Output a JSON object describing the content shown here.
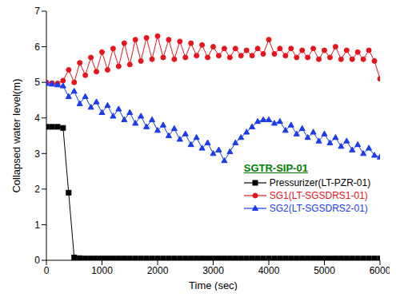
{
  "chart_data": {
    "type": "line",
    "annotations": [
      "SGTR-SIP-01"
    ],
    "x_label": "Time (sec)",
    "y_label": "Collapsed water level(m)",
    "xlim": [
      0,
      6000
    ],
    "xticks": [
      0,
      1000,
      2000,
      3000,
      4000,
      5000,
      6000
    ],
    "ylim": [
      0,
      7
    ],
    "yticks": [
      0,
      1,
      2,
      3,
      4,
      5,
      6,
      7
    ],
    "grid": false,
    "legend": "lower right",
    "x": [
      0,
      100,
      200,
      300,
      400,
      500,
      600,
      700,
      800,
      900,
      1000,
      1100,
      1200,
      1300,
      1400,
      1500,
      1600,
      1700,
      1800,
      1900,
      2000,
      2100,
      2200,
      2300,
      2400,
      2500,
      2600,
      2700,
      2800,
      2900,
      3000,
      3100,
      3200,
      3300,
      3400,
      3500,
      3600,
      3700,
      3800,
      3900,
      4000,
      4100,
      4200,
      4300,
      4400,
      4500,
      4600,
      4700,
      4800,
      4900,
      5000,
      5100,
      5200,
      5300,
      5400,
      5500,
      5600,
      5700,
      5800,
      5900,
      6000
    ],
    "series": [
      {
        "name": "Pressurizer(LT-PZR-01)",
        "color": "#000000",
        "marker": "square",
        "values": [
          3.75,
          3.75,
          3.75,
          3.72,
          1.9,
          0.08,
          0.06,
          0.05,
          0.05,
          0.05,
          0.05,
          0.05,
          0.05,
          0.05,
          0.05,
          0.05,
          0.05,
          0.05,
          0.05,
          0.05,
          0.05,
          0.05,
          0.05,
          0.05,
          0.05,
          0.05,
          0.05,
          0.05,
          0.05,
          0.05,
          0.05,
          0.05,
          0.05,
          0.05,
          0.05,
          0.05,
          0.05,
          0.05,
          0.05,
          0.05,
          0.05,
          0.05,
          0.05,
          0.05,
          0.05,
          0.05,
          0.05,
          0.05,
          0.05,
          0.05,
          0.05,
          0.05,
          0.05,
          0.05,
          0.05,
          0.05,
          0.05,
          0.05,
          0.05,
          0.05,
          0.05
        ]
      },
      {
        "name": "SG1(LT-SGSDRS1-01)",
        "color": "#e8141a",
        "marker": "circle",
        "values": [
          5.0,
          4.98,
          4.97,
          5.05,
          5.35,
          5.0,
          5.55,
          5.2,
          5.7,
          5.3,
          5.85,
          5.35,
          5.95,
          5.45,
          6.1,
          5.5,
          6.2,
          5.6,
          6.25,
          5.65,
          6.3,
          5.7,
          6.2,
          5.65,
          6.15,
          5.7,
          6.1,
          5.75,
          6.05,
          5.7,
          6.0,
          5.75,
          5.95,
          5.7,
          5.95,
          5.75,
          5.9,
          5.75,
          5.95,
          5.8,
          6.2,
          5.8,
          5.95,
          5.75,
          5.95,
          5.7,
          5.9,
          5.7,
          5.95,
          5.65,
          5.9,
          5.7,
          6.0,
          5.65,
          5.9,
          5.65,
          5.85,
          5.65,
          5.9,
          5.6,
          5.1
        ]
      },
      {
        "name": "SG2(LT-SGSDRS2-01)",
        "color": "#1a3cf0",
        "marker": "triangle",
        "values": [
          4.97,
          4.95,
          4.93,
          4.9,
          4.6,
          4.75,
          4.4,
          4.6,
          4.3,
          4.45,
          4.15,
          4.35,
          4.05,
          4.25,
          3.95,
          4.15,
          3.85,
          4.05,
          3.75,
          3.95,
          3.65,
          3.8,
          3.5,
          3.7,
          3.4,
          3.55,
          3.25,
          3.45,
          3.15,
          3.3,
          3.0,
          3.1,
          2.8,
          3.05,
          3.3,
          3.45,
          3.6,
          3.75,
          3.9,
          3.95,
          3.95,
          3.85,
          3.9,
          3.65,
          3.8,
          3.55,
          3.7,
          3.45,
          3.6,
          3.35,
          3.55,
          3.3,
          3.45,
          3.2,
          3.35,
          3.1,
          3.25,
          3.0,
          3.15,
          2.95,
          2.9
        ]
      }
    ]
  }
}
